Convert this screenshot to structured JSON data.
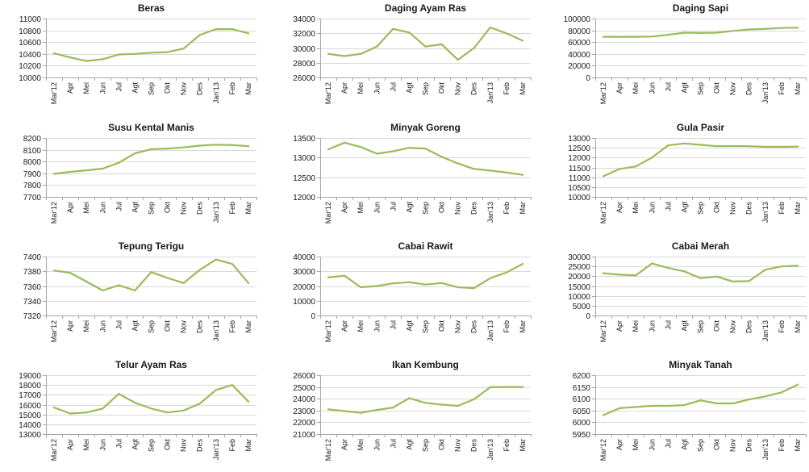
{
  "style": {
    "line_color": "#9bbb59",
    "grid_color": "#d9d9d9",
    "axis_color": "#a6a6a6"
  },
  "chart_data": [
    {
      "type": "line",
      "title": "Beras",
      "categories": [
        "Mar'12",
        "Apr",
        "Mei",
        "Jun",
        "Jul",
        "Agt",
        "Sep",
        "Okt",
        "Nov",
        "Des",
        "Jan'13",
        "Feb",
        "Mar"
      ],
      "ylim": [
        10000,
        11000
      ],
      "yticks": [
        10000,
        10200,
        10400,
        10600,
        10800,
        11000
      ],
      "grid": true,
      "values": [
        10410,
        10340,
        10280,
        10310,
        10390,
        10400,
        10420,
        10430,
        10490,
        10720,
        10820,
        10820,
        10750
      ]
    },
    {
      "type": "line",
      "title": "Daging Ayam Ras",
      "categories": [
        "Mar'12",
        "Apr",
        "Mei",
        "Jun",
        "Jul",
        "Agt",
        "Sep",
        "Okt",
        "Nov",
        "Des",
        "Jan'13",
        "Feb",
        "Mar"
      ],
      "ylim": [
        26000,
        34000
      ],
      "yticks": [
        26000,
        28000,
        30000,
        32000,
        34000
      ],
      "grid": true,
      "values": [
        29200,
        28900,
        29200,
        30200,
        32600,
        32100,
        30200,
        30500,
        28400,
        30000,
        32800,
        32000,
        31000
      ]
    },
    {
      "type": "line",
      "title": "Daging Sapi",
      "categories": [
        "Mar'12",
        "Apr",
        "Mei",
        "Jun",
        "Jul",
        "Agt",
        "Sep",
        "Okt",
        "Nov",
        "Des",
        "Jan'13",
        "Feb",
        "Mar"
      ],
      "ylim": [
        0,
        100000
      ],
      "yticks": [
        0,
        20000,
        40000,
        60000,
        80000,
        100000
      ],
      "grid": true,
      "values": [
        69000,
        69000,
        69000,
        69500,
        72500,
        76000,
        75500,
        76000,
        79000,
        81500,
        82500,
        84000,
        84500
      ]
    },
    {
      "type": "line",
      "title": "Susu Kental Manis",
      "categories": [
        "Mar'12",
        "Apr",
        "Mei",
        "Jun",
        "Jul",
        "Agt",
        "Sep",
        "Okt",
        "Nov",
        "Des",
        "Jan'13",
        "Feb",
        "Mar"
      ],
      "ylim": [
        7700,
        8200
      ],
      "yticks": [
        7700,
        7800,
        7900,
        8000,
        8100,
        8200
      ],
      "grid": true,
      "values": [
        7895,
        7912,
        7925,
        7940,
        7990,
        8070,
        8105,
        8110,
        8120,
        8135,
        8143,
        8140,
        8130
      ]
    },
    {
      "type": "line",
      "title": "Minyak Goreng",
      "categories": [
        "Mar'12",
        "Apr",
        "Mei",
        "Jun",
        "Jul",
        "Agt",
        "Sep",
        "Okt",
        "Nov",
        "Des",
        "Jan'13",
        "Feb",
        "Mar"
      ],
      "ylim": [
        12000,
        13500
      ],
      "yticks": [
        12000,
        12500,
        13000,
        13500
      ],
      "grid": true,
      "values": [
        13210,
        13380,
        13270,
        13100,
        13160,
        13250,
        13230,
        13020,
        12850,
        12710,
        12670,
        12620,
        12560
      ]
    },
    {
      "type": "line",
      "title": "Gula Pasir",
      "categories": [
        "Mar'12",
        "Apr",
        "Mei",
        "Jun",
        "Jul",
        "Agt",
        "Sep",
        "Okt",
        "Nov",
        "Des",
        "Jan'13",
        "Feb",
        "Mar"
      ],
      "ylim": [
        10000,
        13000
      ],
      "yticks": [
        10000,
        10500,
        11000,
        11500,
        12000,
        12500,
        13000
      ],
      "grid": true,
      "values": [
        11050,
        11420,
        11550,
        12000,
        12620,
        12720,
        12650,
        12580,
        12590,
        12580,
        12550,
        12550,
        12560
      ]
    },
    {
      "type": "line",
      "title": "Tepung Terigu",
      "categories": [
        "Mar'12",
        "Apr",
        "Mei",
        "Jun",
        "Jul",
        "Agt",
        "Sep",
        "Okt",
        "Nov",
        "Des",
        "Jan'13",
        "Feb",
        "Mar"
      ],
      "ylim": [
        7320,
        7400
      ],
      "yticks": [
        7320,
        7340,
        7360,
        7380,
        7400
      ],
      "grid": true,
      "values": [
        7381,
        7378,
        7366,
        7354,
        7361,
        7354,
        7379,
        7371,
        7364,
        7382,
        7396,
        7390,
        7364
      ]
    },
    {
      "type": "line",
      "title": "Cabai Rawit",
      "categories": [
        "Mar'12",
        "Apr",
        "Mei",
        "Jun",
        "Jul",
        "Agt",
        "Sep",
        "Okt",
        "Nov",
        "Des",
        "Jan'13",
        "Feb",
        "Mar"
      ],
      "ylim": [
        0,
        40000
      ],
      "yticks": [
        0,
        10000,
        20000,
        30000,
        40000
      ],
      "grid": true,
      "values": [
        25800,
        27000,
        19200,
        20000,
        21800,
        22600,
        21000,
        22000,
        19200,
        18600,
        25300,
        29200,
        35000
      ]
    },
    {
      "type": "line",
      "title": "Cabai Merah",
      "categories": [
        "Mar'12",
        "Apr",
        "Mei",
        "Jun",
        "Jul",
        "Agt",
        "Sep",
        "Okt",
        "Nov",
        "Des",
        "Jan'13",
        "Feb",
        "Mar"
      ],
      "ylim": [
        0,
        30000
      ],
      "yticks": [
        0,
        5000,
        10000,
        15000,
        20000,
        25000,
        30000
      ],
      "grid": true,
      "values": [
        21500,
        20800,
        20400,
        26500,
        24200,
        22500,
        19000,
        19800,
        17300,
        17500,
        23300,
        25000,
        25300
      ]
    },
    {
      "type": "line",
      "title": "Telur Ayam Ras",
      "categories": [
        "Mar'12",
        "Apr",
        "Mei",
        "Jun",
        "Jul",
        "Agt",
        "Sep",
        "Okt",
        "Nov",
        "Des",
        "Jan'13",
        "Feb",
        "Mar"
      ],
      "ylim": [
        13000,
        19000
      ],
      "yticks": [
        13000,
        14000,
        15000,
        16000,
        17000,
        18000,
        19000
      ],
      "grid": true,
      "values": [
        15700,
        15100,
        15200,
        15600,
        17100,
        16200,
        15600,
        15200,
        15400,
        16100,
        17500,
        18000,
        16300
      ]
    },
    {
      "type": "line",
      "title": "Ikan Kembung",
      "categories": [
        "Mar'12",
        "Apr",
        "Mei",
        "Jun",
        "Jul",
        "Agt",
        "Sep",
        "Okt",
        "Nov",
        "Des",
        "Jan'13",
        "Feb",
        "Mar"
      ],
      "ylim": [
        21000,
        26000
      ],
      "yticks": [
        21000,
        22000,
        23000,
        24000,
        25000,
        26000
      ],
      "grid": true,
      "values": [
        23100,
        22950,
        22800,
        23050,
        23250,
        24050,
        23650,
        23500,
        23400,
        23950,
        24980,
        25000,
        25000
      ]
    },
    {
      "type": "line",
      "title": "Minyak Tanah",
      "categories": [
        "Mar'12",
        "Apr",
        "Mei",
        "Jun",
        "Jul",
        "Agt",
        "Sep",
        "Okt",
        "Nov",
        "Des",
        "Jan'13",
        "Feb",
        "Mar"
      ],
      "ylim": [
        5950,
        6200
      ],
      "yticks": [
        5950,
        6000,
        6050,
        6100,
        6150,
        6200
      ],
      "grid": true,
      "values": [
        6030,
        6060,
        6065,
        6070,
        6070,
        6073,
        6093,
        6080,
        6080,
        6097,
        6110,
        6127,
        6160
      ]
    }
  ]
}
